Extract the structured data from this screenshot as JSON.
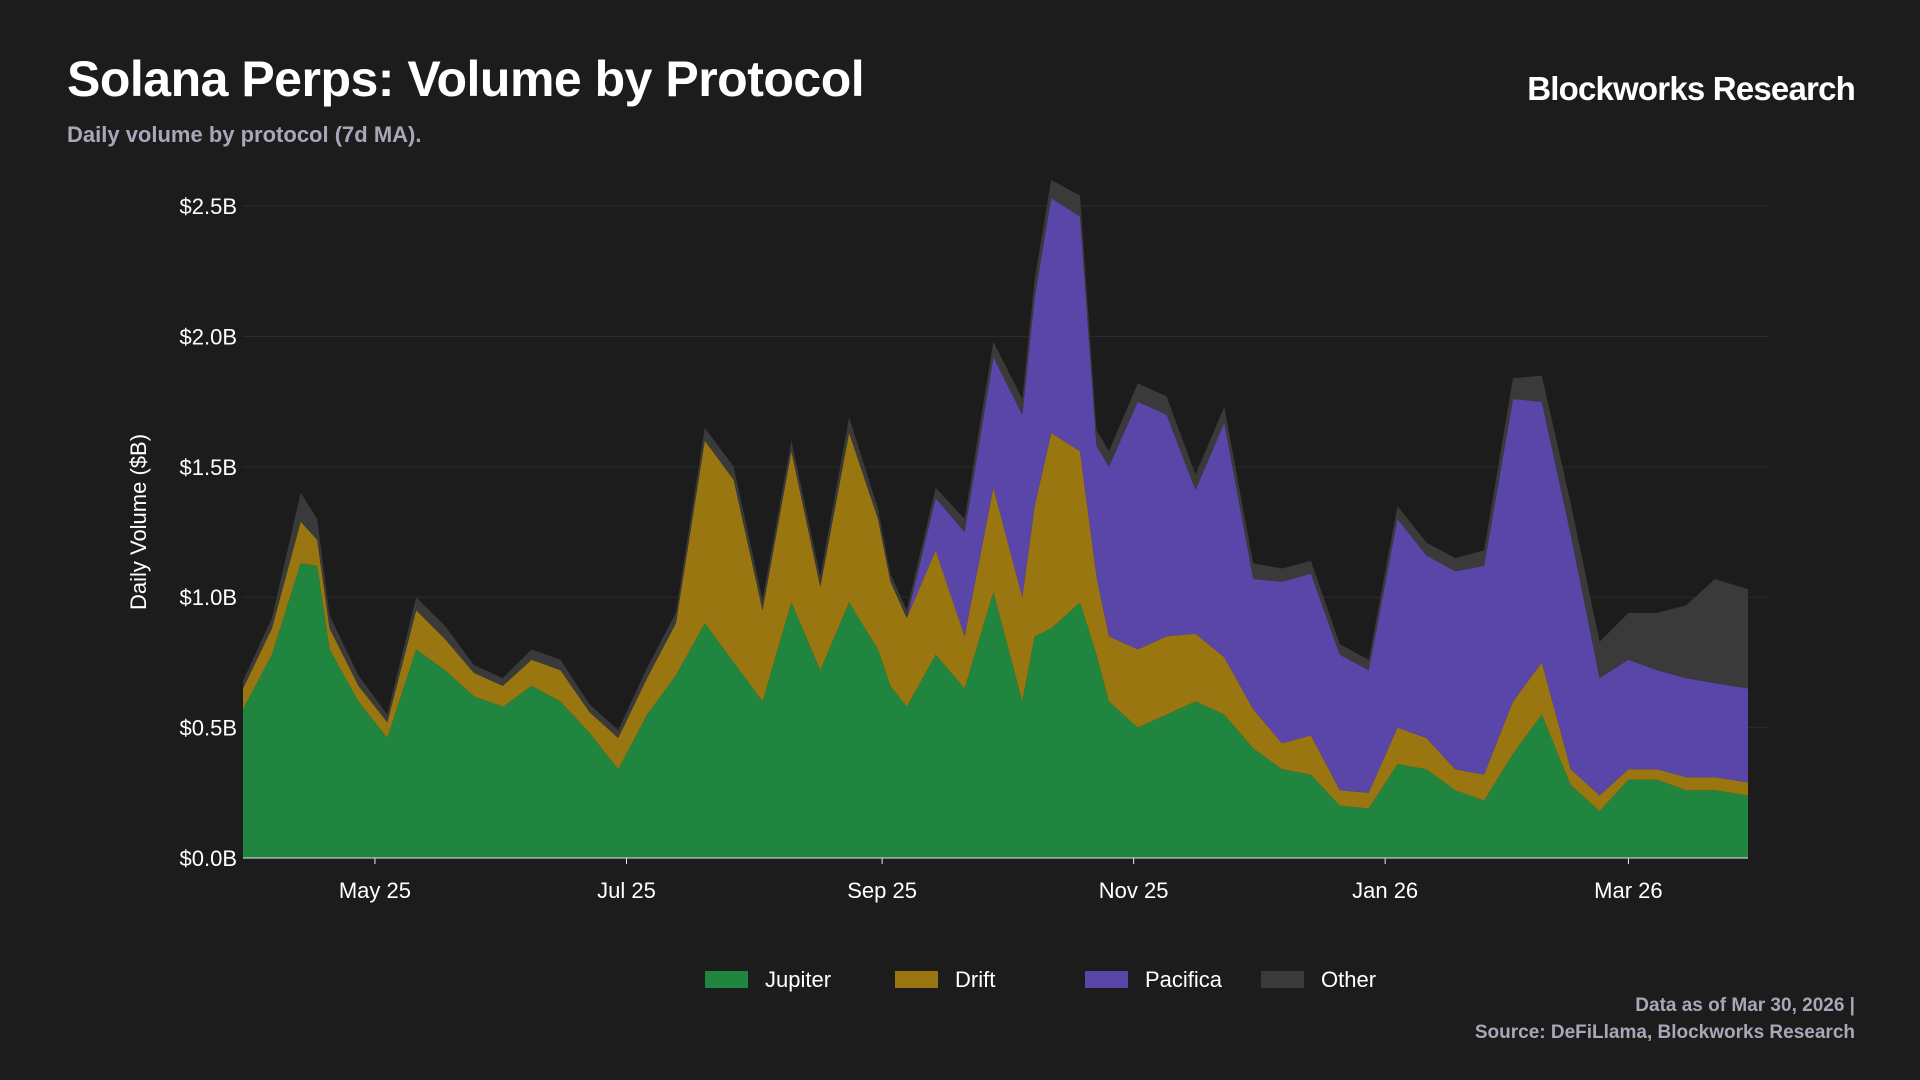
{
  "header": {
    "title": "Solana Perps: Volume by Protocol",
    "subtitle": "Daily volume by protocol (7d MA).",
    "brand": "Blockworks Research"
  },
  "footer": {
    "line1": "Data as of Mar 30, 2026 |",
    "line2": "Source: DeFiLlama, Blockworks Research"
  },
  "colors": {
    "background": "#1c1c1c",
    "Jupiter": "#20853f",
    "Drift": "#9a7611",
    "Pacifica": "#5946a8",
    "Other": "#3a3a3a",
    "grid": "#2b2b2b"
  },
  "chart_data": {
    "type": "area",
    "stacked": true,
    "ylabel": "Daily Volume ($B)",
    "ylim": [
      0,
      2.6
    ],
    "y_ticks": [
      0,
      0.5,
      1.0,
      1.5,
      2.0,
      2.5
    ],
    "y_tick_labels": [
      "$0.0B",
      "$0.5B",
      "$1.0B",
      "$1.5B",
      "$2.0B",
      "$2.5B"
    ],
    "xlim": [
      "2025-03-30",
      "2026-03-30"
    ],
    "x_ticks": [
      "2025-05-01",
      "2025-07-01",
      "2025-09-01",
      "2025-11-01",
      "2026-01-01",
      "2026-03-01"
    ],
    "x_tick_labels": [
      "May 25",
      "Jul 25",
      "Sep 25",
      "Nov 25",
      "Jan 26",
      "Mar 26"
    ],
    "grid": "horizontal",
    "legend_position": "bottom-center",
    "x": [
      "2025-03-30",
      "2025-04-06",
      "2025-04-13",
      "2025-04-17",
      "2025-04-20",
      "2025-04-27",
      "2025-05-04",
      "2025-05-11",
      "2025-05-18",
      "2025-05-25",
      "2025-06-01",
      "2025-06-08",
      "2025-06-15",
      "2025-06-22",
      "2025-06-29",
      "2025-07-06",
      "2025-07-13",
      "2025-07-20",
      "2025-07-27",
      "2025-08-03",
      "2025-08-10",
      "2025-08-17",
      "2025-08-24",
      "2025-08-31",
      "2025-09-03",
      "2025-09-07",
      "2025-09-14",
      "2025-09-21",
      "2025-09-28",
      "2025-10-05",
      "2025-10-08",
      "2025-10-12",
      "2025-10-19",
      "2025-10-23",
      "2025-10-26",
      "2025-11-02",
      "2025-11-09",
      "2025-11-16",
      "2025-11-23",
      "2025-11-30",
      "2025-12-07",
      "2025-12-14",
      "2025-12-21",
      "2025-12-28",
      "2026-01-04",
      "2026-01-11",
      "2026-01-18",
      "2026-01-25",
      "2026-02-01",
      "2026-02-08",
      "2026-02-15",
      "2026-02-22",
      "2026-03-01",
      "2026-03-08",
      "2026-03-15",
      "2026-03-22",
      "2026-03-30"
    ],
    "series": [
      {
        "name": "Jupiter",
        "values": [
          0.57,
          0.78,
          1.13,
          1.12,
          0.8,
          0.6,
          0.46,
          0.8,
          0.72,
          0.62,
          0.58,
          0.66,
          0.6,
          0.48,
          0.34,
          0.55,
          0.7,
          0.9,
          0.75,
          0.6,
          0.98,
          0.72,
          0.98,
          0.8,
          0.66,
          0.58,
          0.78,
          0.65,
          1.02,
          0.6,
          0.85,
          0.88,
          0.98,
          0.78,
          0.6,
          0.5,
          0.55,
          0.6,
          0.55,
          0.42,
          0.34,
          0.32,
          0.2,
          0.19,
          0.36,
          0.34,
          0.26,
          0.22,
          0.4,
          0.55,
          0.28,
          0.18,
          0.3,
          0.3,
          0.26,
          0.26,
          0.24
        ]
      },
      {
        "name": "Drift",
        "values": [
          0.08,
          0.1,
          0.16,
          0.1,
          0.08,
          0.06,
          0.06,
          0.15,
          0.12,
          0.09,
          0.08,
          0.1,
          0.12,
          0.08,
          0.12,
          0.14,
          0.2,
          0.7,
          0.7,
          0.35,
          0.58,
          0.32,
          0.65,
          0.5,
          0.4,
          0.34,
          0.4,
          0.2,
          0.4,
          0.4,
          0.5,
          0.75,
          0.58,
          0.3,
          0.25,
          0.3,
          0.3,
          0.26,
          0.22,
          0.15,
          0.1,
          0.15,
          0.06,
          0.06,
          0.14,
          0.12,
          0.08,
          0.1,
          0.2,
          0.2,
          0.06,
          0.06,
          0.04,
          0.04,
          0.05,
          0.05,
          0.05
        ]
      },
      {
        "name": "Pacifica",
        "values": [
          0,
          0,
          0,
          0,
          0,
          0,
          0,
          0,
          0,
          0,
          0,
          0,
          0,
          0,
          0,
          0,
          0,
          0,
          0,
          0,
          0,
          0,
          0,
          0,
          0,
          0,
          0.2,
          0.4,
          0.5,
          0.7,
          0.8,
          0.9,
          0.9,
          0.5,
          0.65,
          0.95,
          0.85,
          0.55,
          0.9,
          0.5,
          0.62,
          0.62,
          0.52,
          0.47,
          0.8,
          0.7,
          0.76,
          0.8,
          1.16,
          1.0,
          0.9,
          0.45,
          0.42,
          0.38,
          0.38,
          0.36,
          0.36
        ]
      },
      {
        "name": "Other",
        "values": [
          0.03,
          0.04,
          0.11,
          0.08,
          0.05,
          0.04,
          0.03,
          0.05,
          0.05,
          0.03,
          0.03,
          0.04,
          0.04,
          0.03,
          0.03,
          0.04,
          0.04,
          0.05,
          0.05,
          0.04,
          0.04,
          0.04,
          0.06,
          0.04,
          0.03,
          0.03,
          0.04,
          0.05,
          0.06,
          0.06,
          0.07,
          0.07,
          0.08,
          0.06,
          0.06,
          0.07,
          0.07,
          0.06,
          0.06,
          0.06,
          0.05,
          0.05,
          0.04,
          0.04,
          0.05,
          0.05,
          0.05,
          0.06,
          0.08,
          0.1,
          0.12,
          0.14,
          0.18,
          0.22,
          0.28,
          0.4,
          0.38
        ]
      }
    ]
  }
}
